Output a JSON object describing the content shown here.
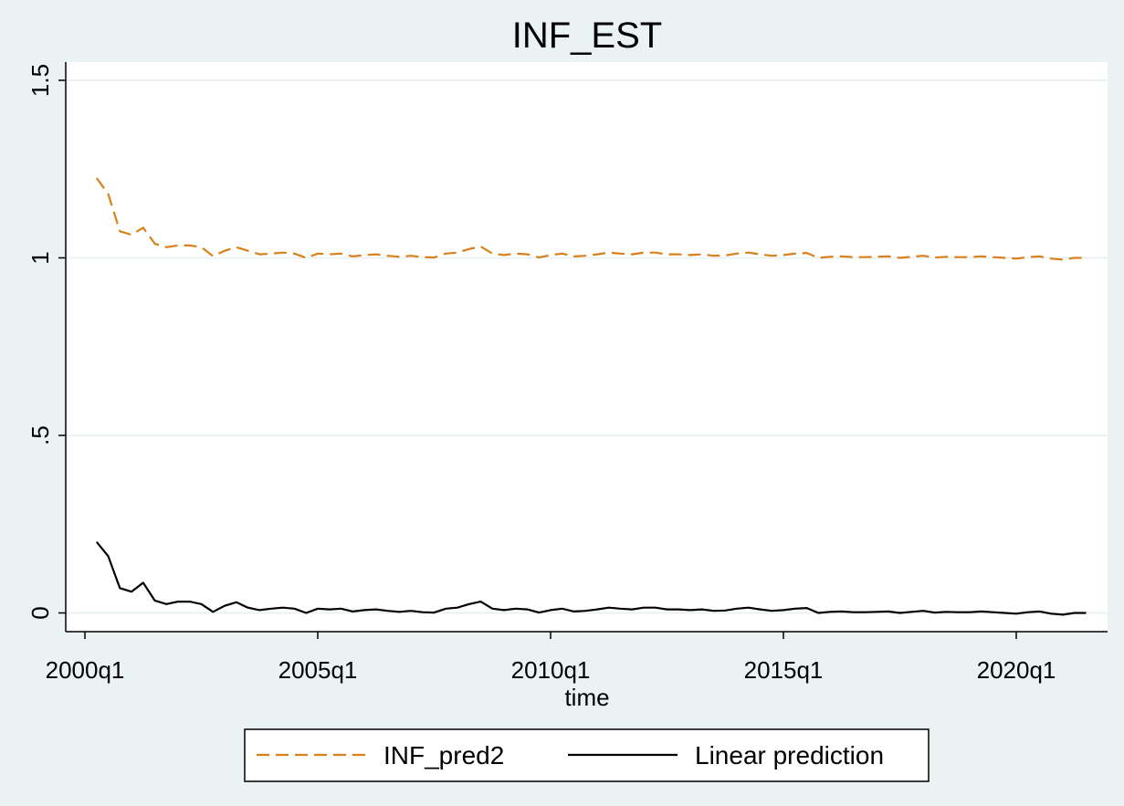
{
  "chart_data": {
    "type": "line",
    "title": "INF_EST",
    "xlabel": "time",
    "ylabel": "",
    "x_ticks": [
      "2000q1",
      "2005q1",
      "2010q1",
      "2015q1",
      "2020q1"
    ],
    "y_ticks": [
      "0",
      ".5",
      "1",
      "1.5"
    ],
    "xlim": [
      "2000q1",
      "2021q4"
    ],
    "ylim": [
      -0.05,
      1.55
    ],
    "grid": "horizontal",
    "legend_position": "bottom",
    "x": [
      "2000q2",
      "2000q3",
      "2000q4",
      "2001q1",
      "2001q2",
      "2001q3",
      "2001q4",
      "2002q1",
      "2002q2",
      "2002q3",
      "2002q4",
      "2003q1",
      "2003q2",
      "2003q3",
      "2003q4",
      "2004q1",
      "2004q2",
      "2004q3",
      "2004q4",
      "2005q1",
      "2005q2",
      "2005q3",
      "2005q4",
      "2006q1",
      "2006q2",
      "2006q3",
      "2006q4",
      "2007q1",
      "2007q2",
      "2007q3",
      "2007q4",
      "2008q1",
      "2008q2",
      "2008q3",
      "2008q4",
      "2009q1",
      "2009q2",
      "2009q3",
      "2009q4",
      "2010q1",
      "2010q2",
      "2010q3",
      "2010q4",
      "2011q1",
      "2011q2",
      "2011q3",
      "2011q4",
      "2012q1",
      "2012q2",
      "2012q3",
      "2012q4",
      "2013q1",
      "2013q2",
      "2013q3",
      "2013q4",
      "2014q1",
      "2014q2",
      "2014q3",
      "2014q4",
      "2015q1",
      "2015q2",
      "2015q3",
      "2015q4",
      "2016q1",
      "2016q2",
      "2016q3",
      "2016q4",
      "2017q1",
      "2017q2",
      "2017q3",
      "2017q4",
      "2018q1",
      "2018q2",
      "2018q3",
      "2018q4",
      "2019q1",
      "2019q2",
      "2019q3",
      "2019q4",
      "2020q1",
      "2020q2",
      "2020q3",
      "2020q4",
      "2021q1",
      "2021q2",
      "2021q3"
    ],
    "series": [
      {
        "name": "INF_pred2",
        "color": "#d9801a",
        "style": "dashed",
        "values": [
          1.225,
          1.18,
          1.075,
          1.065,
          1.085,
          1.04,
          1.03,
          1.035,
          1.035,
          1.03,
          1.005,
          1.02,
          1.03,
          1.02,
          1.01,
          1.012,
          1.015,
          1.012,
          1.0,
          1.012,
          1.01,
          1.012,
          1.004,
          1.008,
          1.01,
          1.006,
          1.003,
          1.006,
          1.002,
          1.001,
          1.012,
          1.015,
          1.025,
          1.032,
          1.012,
          1.008,
          1.012,
          1.01,
          1.001,
          1.008,
          1.012,
          1.004,
          1.006,
          1.01,
          1.015,
          1.012,
          1.01,
          1.015,
          1.015,
          1.01,
          1.01,
          1.008,
          1.01,
          1.006,
          1.007,
          1.012,
          1.015,
          1.01,
          1.006,
          1.008,
          1.012,
          1.014,
          1.0,
          1.003,
          1.004,
          1.002,
          1.002,
          1.003,
          1.004,
          1.0,
          1.003,
          1.006,
          1.001,
          1.003,
          1.002,
          1.002,
          1.004,
          1.002,
          1.0,
          0.998,
          1.002,
          1.004,
          0.998,
          0.995,
          1.0,
          1.0
        ]
      },
      {
        "name": "Linear prediction",
        "color": "#000000",
        "style": "solid",
        "values": [
          0.2,
          0.16,
          0.07,
          0.06,
          0.085,
          0.035,
          0.025,
          0.032,
          0.032,
          0.025,
          0.003,
          0.02,
          0.03,
          0.015,
          0.008,
          0.012,
          0.015,
          0.012,
          0.0,
          0.012,
          0.01,
          0.012,
          0.004,
          0.008,
          0.01,
          0.006,
          0.003,
          0.006,
          0.002,
          0.001,
          0.012,
          0.015,
          0.025,
          0.032,
          0.012,
          0.008,
          0.012,
          0.01,
          0.001,
          0.008,
          0.012,
          0.004,
          0.006,
          0.01,
          0.015,
          0.012,
          0.01,
          0.015,
          0.015,
          0.01,
          0.01,
          0.008,
          0.01,
          0.006,
          0.007,
          0.012,
          0.015,
          0.01,
          0.006,
          0.008,
          0.012,
          0.014,
          0.0,
          0.003,
          0.004,
          0.002,
          0.002,
          0.003,
          0.004,
          0.0,
          0.003,
          0.006,
          0.001,
          0.003,
          0.002,
          0.002,
          0.004,
          0.002,
          0.0,
          -0.002,
          0.002,
          0.004,
          -0.002,
          -0.005,
          0.0,
          0.0
        ]
      }
    ]
  }
}
